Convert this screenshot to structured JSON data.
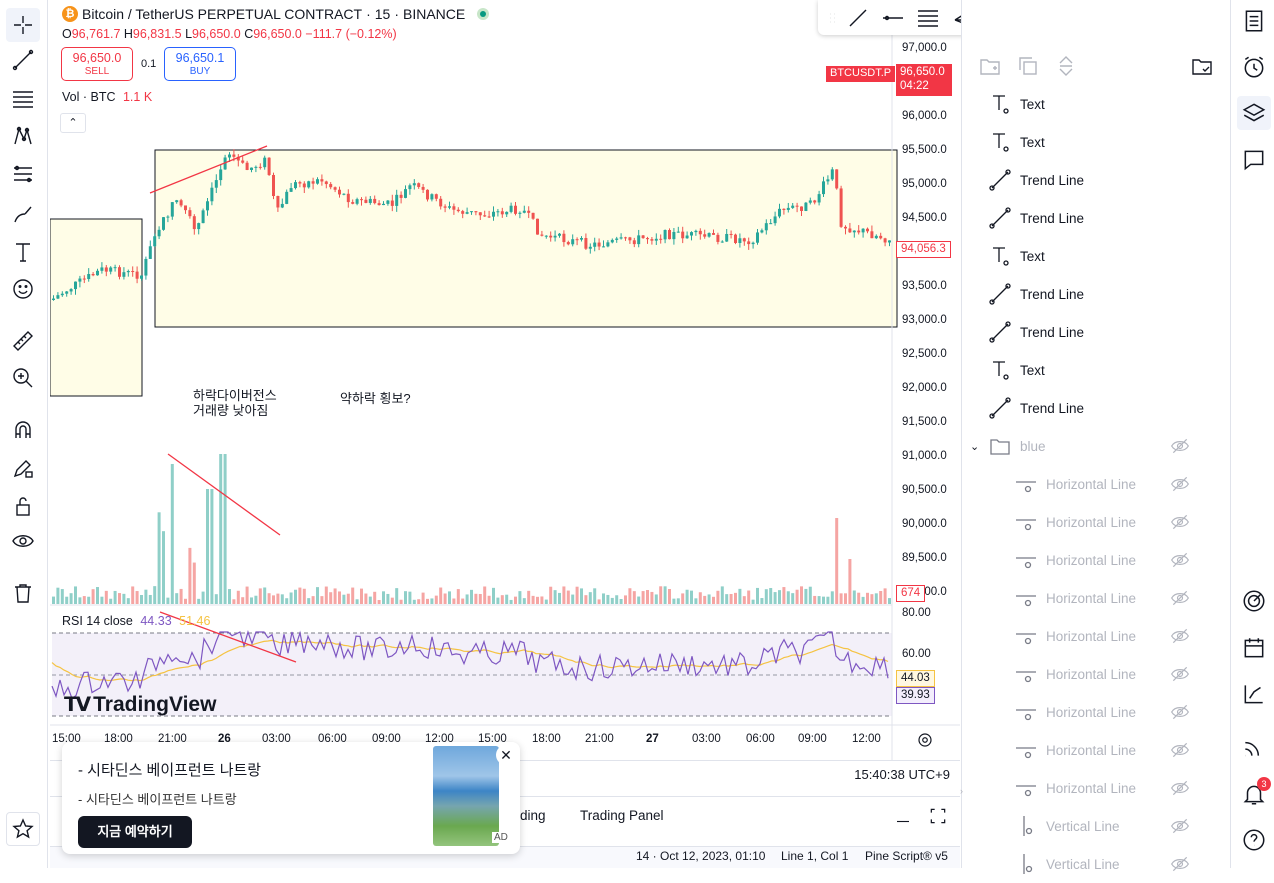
{
  "symbol": {
    "name": "Bitcoin / TetherUS PERPETUAL CONTRACT",
    "interval": "15",
    "exchange": "BINANCE",
    "ticker": "BTCUSDT.P"
  },
  "ohlc": {
    "o_label": "O",
    "o": "96,761.7",
    "h_label": "H",
    "h": "96,831.5",
    "l_label": "L",
    "l": "96,650.0",
    "c_label": "C",
    "c": "96,650.0",
    "change": "−111.7 (−0.12%)"
  },
  "trade": {
    "sell_price": "96,650.0",
    "sell_label": "SELL",
    "spread": "0.1",
    "buy_price": "96,650.1",
    "buy_label": "BUY"
  },
  "volume": {
    "label": "Vol · BTC",
    "value": "1.1 K",
    "tag": "674"
  },
  "price_axis": [
    "97,000.0",
    "96,000.0",
    "95,500.0",
    "95,000.0",
    "94,500.0",
    "94,000.0",
    "93,500.0",
    "93,000.0",
    "92,500.0",
    "92,000.0",
    "91,500.0",
    "91,000.0",
    "90,500.0",
    "90,000.0",
    "89,500.0",
    "89,000.0"
  ],
  "last_price": {
    "value": "96,650.0",
    "countdown": "04:22"
  },
  "cursor_price": "94,056.3",
  "time_axis": [
    "15:00",
    "18:00",
    "21:00",
    "26",
    "03:00",
    "06:00",
    "09:00",
    "12:00",
    "15:00",
    "18:00",
    "21:00",
    "27",
    "03:00",
    "06:00",
    "09:00",
    "12:00"
  ],
  "annotations": {
    "text1_line1": "하락다이버전스",
    "text1_line2": "거래량 낮아짐",
    "text2": "약하락 횡보?"
  },
  "rsi": {
    "label": "RSI 14 close",
    "rsi_value": "44.33",
    "ma_value": "51.46",
    "axis": [
      "80.00",
      "60.00"
    ],
    "tag_ma": "44.03",
    "tag_rsi": "39.93"
  },
  "watermark": "TradingView",
  "clock": "15:40:38 UTC+9",
  "ad": {
    "title": "- 시타딘스 베이프런트 나트랑",
    "subtitle": "- 시타딘스 베이프런트 나트랑",
    "cta": "지금 예약하기",
    "badge": "AD"
  },
  "bottom_tabs": {
    "tab_partial": "ding",
    "trading_panel": "Trading Panel"
  },
  "status_bar": {
    "info": "14 · Oct 12, 2023, 01:10",
    "cursor": "Line 1, Col 1",
    "pine": "Pine Script® v5"
  },
  "objects": [
    {
      "label": "Text",
      "type": "text",
      "hidden": false
    },
    {
      "label": "Text",
      "type": "text",
      "hidden": false
    },
    {
      "label": "Trend Line",
      "type": "trend",
      "hidden": false
    },
    {
      "label": "Trend Line",
      "type": "trend",
      "hidden": false
    },
    {
      "label": "Text",
      "type": "text",
      "hidden": false
    },
    {
      "label": "Trend Line",
      "type": "trend",
      "hidden": false
    },
    {
      "label": "Trend Line",
      "type": "trend",
      "hidden": false
    },
    {
      "label": "Text",
      "type": "text",
      "hidden": false
    },
    {
      "label": "Trend Line",
      "type": "trend",
      "hidden": false
    }
  ],
  "group": {
    "label": "blue",
    "hidden": true
  },
  "group_children": [
    {
      "label": "Horizontal Line",
      "type": "hline"
    },
    {
      "label": "Horizontal Line",
      "type": "hline"
    },
    {
      "label": "Horizontal Line",
      "type": "hline"
    },
    {
      "label": "Horizontal Line",
      "type": "hline"
    },
    {
      "label": "Horizontal Line",
      "type": "hline"
    },
    {
      "label": "Horizontal Line",
      "type": "hline"
    },
    {
      "label": "Horizontal Line",
      "type": "hline"
    },
    {
      "label": "Horizontal Line",
      "type": "hline"
    },
    {
      "label": "Horizontal Line",
      "type": "hline"
    },
    {
      "label": "Vertical Line",
      "type": "vline"
    },
    {
      "label": "Vertical Line",
      "type": "vline"
    }
  ],
  "notification_count": "3",
  "colors": {
    "up": "#26a69a",
    "down": "#ef5350",
    "accent": "#2962ff",
    "rsi": "#7e57c2",
    "rsi_ma": "#f5c342",
    "rect_fill": "#fffde7",
    "red": "#f23645"
  }
}
